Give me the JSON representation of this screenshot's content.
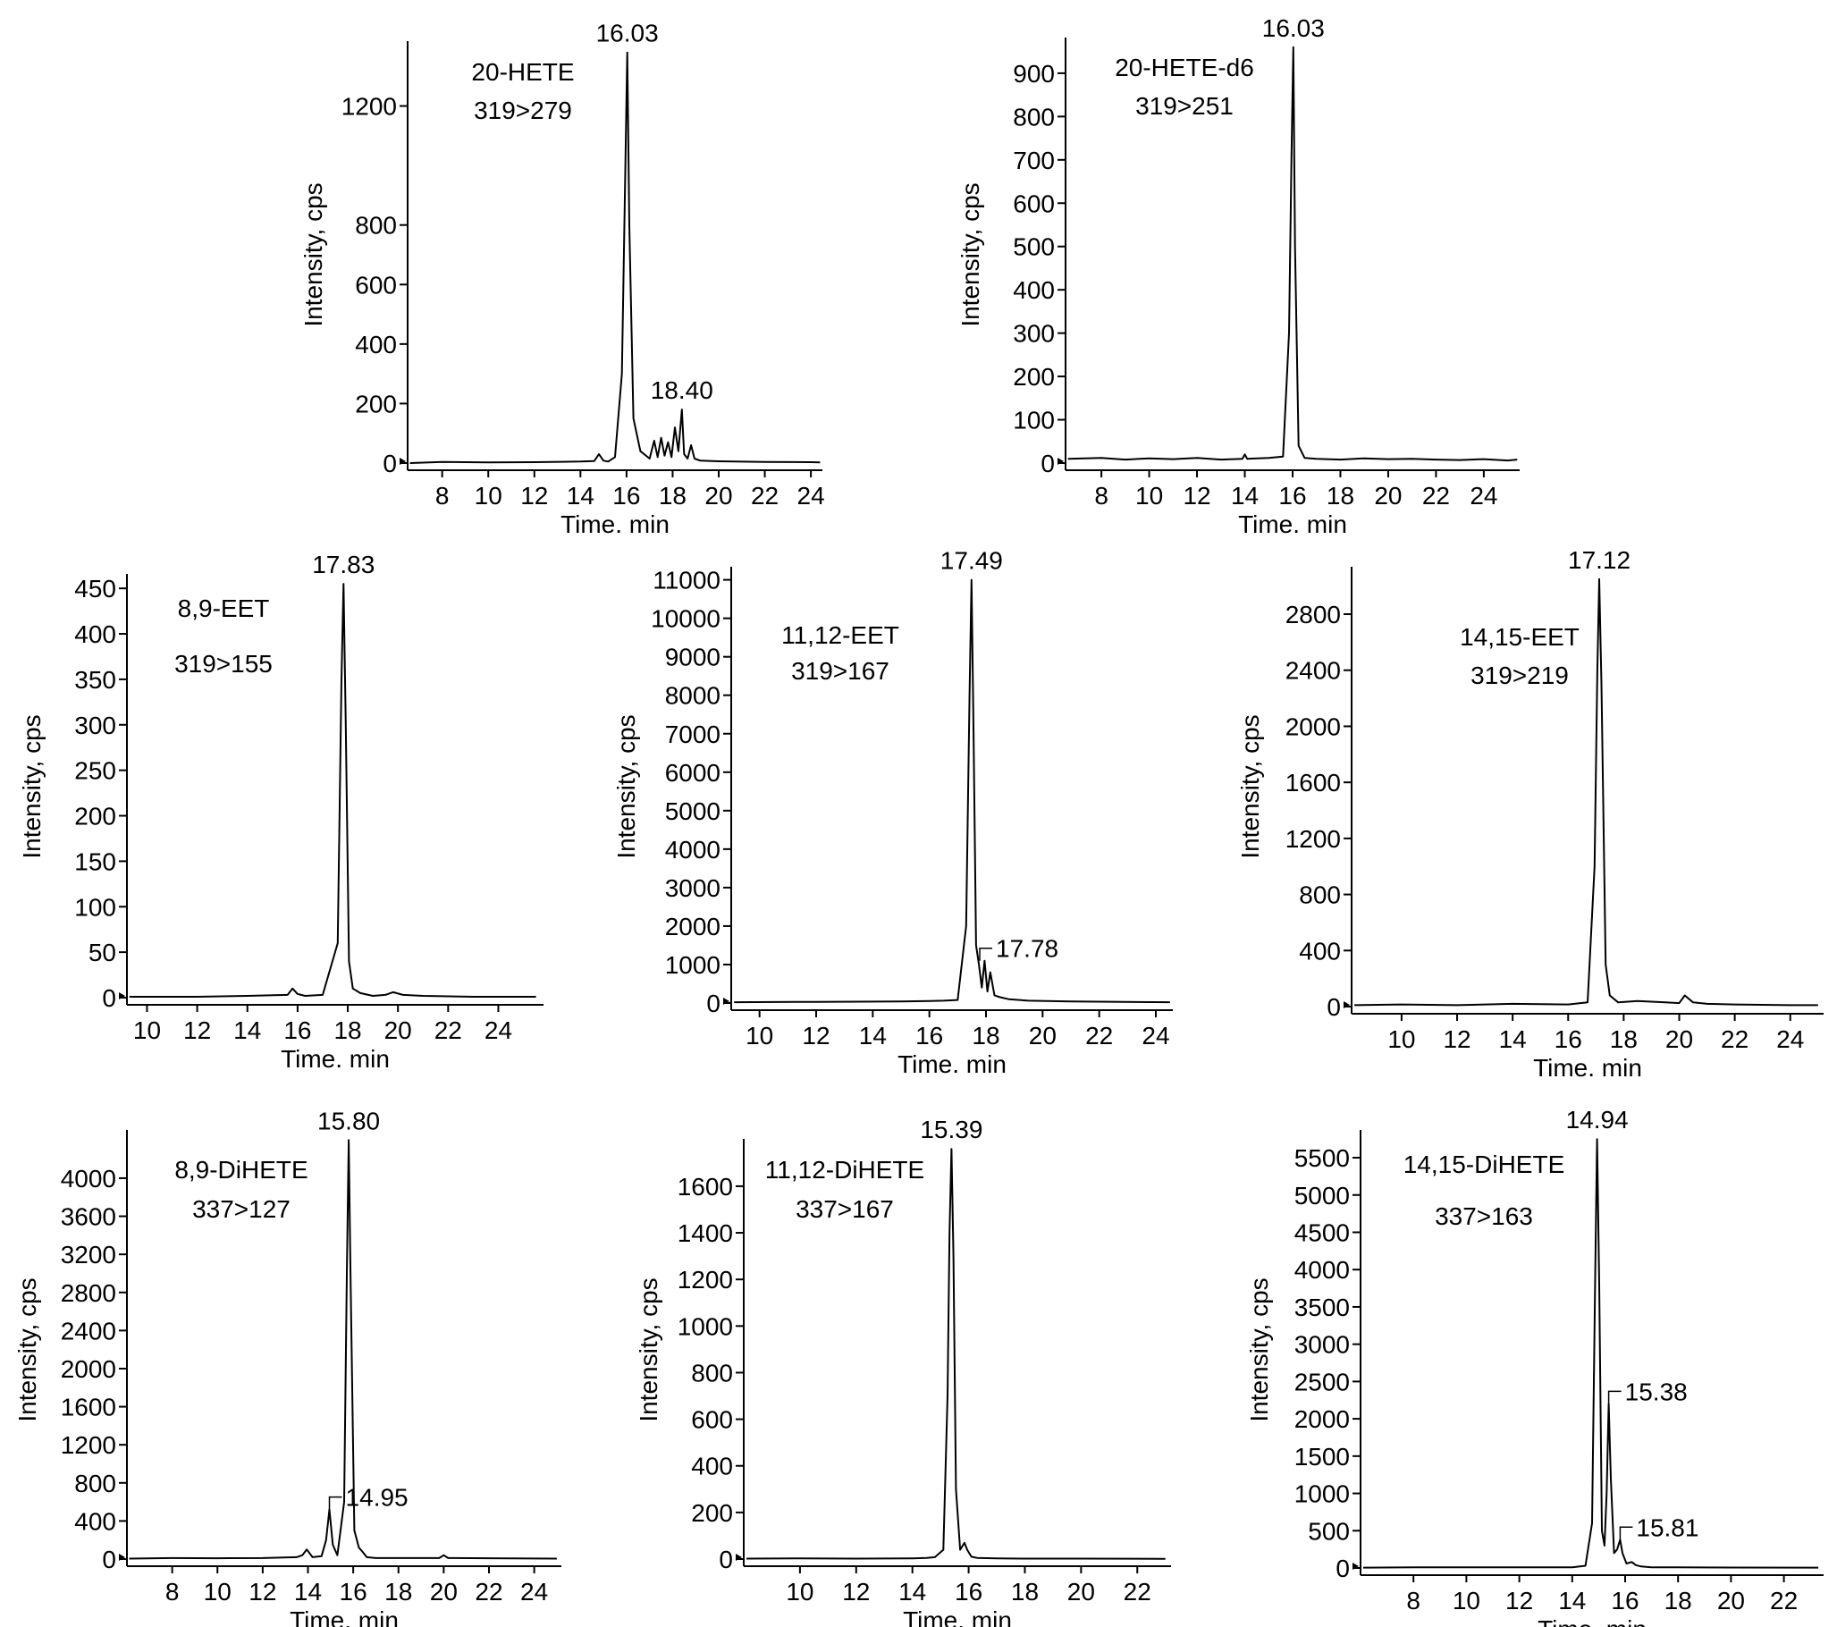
{
  "chart_data": [
    {
      "type": "line",
      "xlabel": "Time. min",
      "ylabel": "Intensity, cps",
      "xlim": [
        6.5,
        24.5
      ],
      "ylim": [
        0,
        1400
      ],
      "xticks": [
        8,
        10,
        12,
        14,
        16,
        18,
        20,
        22,
        24
      ],
      "yticks": [
        0,
        200,
        400,
        600,
        800,
        1200
      ],
      "annotation_lines": [
        "20-HETE",
        "319>279"
      ],
      "series": [
        {
          "x": [
            6.6,
            8.0,
            10.0,
            12.0,
            14.0,
            14.6,
            14.8,
            15.0,
            15.2,
            15.5,
            15.8,
            15.95,
            16.03,
            16.12,
            16.3,
            16.6,
            17.0,
            17.2,
            17.35,
            17.5,
            17.65,
            17.8,
            17.95,
            18.1,
            18.25,
            18.4,
            18.5,
            18.65,
            18.8,
            18.95,
            19.2,
            20.0,
            22.0,
            24.0,
            24.4
          ],
          "y": [
            0,
            4,
            2,
            3,
            5,
            7,
            30,
            8,
            5,
            20,
            300,
            1000,
            1380,
            800,
            150,
            40,
            15,
            75,
            20,
            85,
            25,
            70,
            20,
            120,
            40,
            180,
            30,
            15,
            60,
            15,
            8,
            6,
            4,
            3,
            2
          ]
        }
      ],
      "peak_labels": [
        {
          "text": "16.03",
          "x": 16.03,
          "y": 1380,
          "leader": false
        },
        {
          "text": "18.40",
          "x": 18.4,
          "y": 180,
          "leader": false
        }
      ]
    },
    {
      "type": "line",
      "xlabel": "Time. min",
      "ylabel": "Intensity, cps",
      "xlim": [
        6.5,
        25.5
      ],
      "ylim": [
        0,
        970
      ],
      "xticks": [
        8,
        10,
        12,
        14,
        16,
        18,
        20,
        22,
        24
      ],
      "yticks": [
        0,
        100,
        200,
        300,
        400,
        500,
        600,
        700,
        800,
        900
      ],
      "annotation_lines": [
        "20-HETE-d6",
        "319>251"
      ],
      "series": [
        {
          "x": [
            6.6,
            8.0,
            9.0,
            10.0,
            11.0,
            12.0,
            13.0,
            13.9,
            14.0,
            14.1,
            15.0,
            15.6,
            15.85,
            15.95,
            16.03,
            16.1,
            16.25,
            16.5,
            17.0,
            18.0,
            19.0,
            20.0,
            21.0,
            22.0,
            23.0,
            24.0,
            25.0,
            25.4
          ],
          "y": [
            10,
            12,
            8,
            11,
            9,
            12,
            8,
            10,
            20,
            10,
            12,
            15,
            300,
            700,
            960,
            500,
            40,
            12,
            10,
            8,
            11,
            9,
            10,
            8,
            7,
            9,
            6,
            8
          ]
        }
      ],
      "peak_labels": [
        {
          "text": "16.03",
          "x": 16.03,
          "y": 960,
          "leader": false
        }
      ]
    },
    {
      "type": "line",
      "xlabel": "Time. min",
      "ylabel": "Intensity, cps",
      "xlim": [
        9.2,
        25.8
      ],
      "ylim": [
        0,
        460
      ],
      "xticks": [
        10,
        12,
        14,
        16,
        18,
        20,
        22,
        24
      ],
      "yticks": [
        0,
        50,
        100,
        150,
        200,
        250,
        300,
        350,
        400,
        450
      ],
      "annotation_lines": [
        "8,9-EET",
        "319>155"
      ],
      "series": [
        {
          "x": [
            9.3,
            12.0,
            14.0,
            15.6,
            15.8,
            16.0,
            16.3,
            17.0,
            17.6,
            17.75,
            17.83,
            17.92,
            18.05,
            18.2,
            18.5,
            19.0,
            19.5,
            19.8,
            20.2,
            21.0,
            23.0,
            25.5
          ],
          "y": [
            1,
            1,
            2,
            3,
            10,
            4,
            2,
            3,
            60,
            350,
            455,
            300,
            40,
            10,
            5,
            2,
            3,
            6,
            3,
            2,
            1,
            1
          ]
        }
      ],
      "peak_labels": [
        {
          "text": "17.83",
          "x": 17.83,
          "y": 455,
          "leader": false
        }
      ]
    },
    {
      "type": "line",
      "xlabel": "Time. min",
      "ylabel": "Intensity, cps",
      "xlim": [
        9.0,
        24.6
      ],
      "ylim": [
        0,
        11200
      ],
      "xticks": [
        10,
        12,
        14,
        16,
        18,
        20,
        22,
        24
      ],
      "yticks": [
        0,
        1000,
        2000,
        3000,
        4000,
        5000,
        6000,
        7000,
        8000,
        9000,
        10000,
        11000
      ],
      "annotation_lines": [
        "11,12-EET",
        "319>167"
      ],
      "series": [
        {
          "x": [
            9.1,
            12.0,
            15.0,
            16.0,
            16.5,
            17.0,
            17.3,
            17.42,
            17.49,
            17.56,
            17.65,
            17.75,
            17.85,
            17.95,
            18.05,
            18.15,
            18.3,
            18.5,
            18.8,
            19.5,
            21.0,
            24.5
          ],
          "y": [
            20,
            30,
            40,
            50,
            60,
            80,
            2000,
            8000,
            11000,
            7000,
            1500,
            1000,
            400,
            1100,
            300,
            800,
            200,
            150,
            100,
            60,
            40,
            20
          ]
        }
      ],
      "peak_labels": [
        {
          "text": "17.49",
          "x": 17.49,
          "y": 11000,
          "leader": false
        },
        {
          "text": "17.78",
          "x": 17.78,
          "y": 1100,
          "leader": true
        }
      ]
    },
    {
      "type": "line",
      "xlabel": "Time. min",
      "ylabel": "Intensity, cps",
      "xlim": [
        8.2,
        25.2
      ],
      "ylim": [
        0,
        3100
      ],
      "xticks": [
        10,
        12,
        14,
        16,
        18,
        20,
        22,
        24
      ],
      "yticks": [
        0,
        400,
        800,
        1200,
        1600,
        2000,
        2400,
        2800
      ],
      "annotation_lines": [
        "14,15-EET",
        "319>219"
      ],
      "series": [
        {
          "x": [
            8.3,
            10.0,
            12.0,
            14.0,
            16.0,
            16.7,
            16.95,
            17.05,
            17.12,
            17.2,
            17.35,
            17.5,
            17.8,
            18.5,
            19.5,
            20.0,
            20.2,
            20.5,
            21.0,
            22.0,
            24.0,
            25.0
          ],
          "y": [
            10,
            15,
            10,
            20,
            15,
            30,
            1000,
            2400,
            3050,
            2300,
            300,
            80,
            30,
            40,
            30,
            25,
            80,
            30,
            20,
            15,
            10,
            10
          ]
        }
      ],
      "peak_labels": [
        {
          "text": "17.12",
          "x": 17.12,
          "y": 3050,
          "leader": false
        }
      ]
    },
    {
      "type": "line",
      "xlabel": "Time. min",
      "ylabel": "Intensity, cps",
      "xlim": [
        6.0,
        25.2
      ],
      "ylim": [
        0,
        4450
      ],
      "xticks": [
        8,
        10,
        12,
        14,
        16,
        18,
        20,
        22,
        24
      ],
      "yticks": [
        0,
        400,
        800,
        1200,
        1600,
        2000,
        2400,
        2800,
        3200,
        3600,
        4000
      ],
      "annotation_lines": [
        "8,9-DiHETE",
        "337>127"
      ],
      "series": [
        {
          "x": [
            6.1,
            8.0,
            10.0,
            12.0,
            13.5,
            13.75,
            13.95,
            14.2,
            14.6,
            14.8,
            14.95,
            15.1,
            15.3,
            15.6,
            15.72,
            15.8,
            15.88,
            16.05,
            16.25,
            16.4,
            16.6,
            17.0,
            18.0,
            19.8,
            20.0,
            20.2,
            22.0,
            25.0
          ],
          "y": [
            5,
            10,
            8,
            10,
            20,
            40,
            100,
            20,
            30,
            200,
            520,
            150,
            40,
            600,
            3000,
            4400,
            3000,
            300,
            120,
            80,
            20,
            10,
            10,
            10,
            40,
            10,
            8,
            5
          ]
        }
      ],
      "peak_labels": [
        {
          "text": "15.80",
          "x": 15.8,
          "y": 4400,
          "leader": false
        },
        {
          "text": "14.95",
          "x": 14.95,
          "y": 520,
          "leader": true
        }
      ]
    },
    {
      "type": "line",
      "xlabel": "Time. min",
      "ylabel": "Intensity, cps",
      "xlim": [
        8.0,
        23.2
      ],
      "ylim": [
        0,
        1780
      ],
      "xticks": [
        10,
        12,
        14,
        16,
        18,
        20,
        22
      ],
      "yticks": [
        0,
        200,
        400,
        600,
        800,
        1000,
        1200,
        1400,
        1600
      ],
      "annotation_lines": [
        "11,12-DiHETE",
        "337>167"
      ],
      "series": [
        {
          "x": [
            8.1,
            10.0,
            12.0,
            14.0,
            14.5,
            14.8,
            15.1,
            15.25,
            15.32,
            15.39,
            15.46,
            15.55,
            15.7,
            15.85,
            15.95,
            16.1,
            16.3,
            17.0,
            18.0,
            20.0,
            23.0
          ],
          "y": [
            2,
            3,
            2,
            3,
            5,
            8,
            40,
            700,
            1400,
            1760,
            1300,
            300,
            40,
            70,
            40,
            10,
            5,
            3,
            2,
            2,
            1
          ]
        }
      ],
      "peak_labels": [
        {
          "text": "15.39",
          "x": 15.39,
          "y": 1760,
          "leader": false
        }
      ]
    },
    {
      "type": "line",
      "xlabel": "Time. min",
      "ylabel": "Intensity, cps",
      "xlim": [
        6.0,
        23.5
      ],
      "ylim": [
        0,
        5800
      ],
      "xticks": [
        8,
        10,
        12,
        14,
        16,
        18,
        20,
        22
      ],
      "yticks": [
        0,
        500,
        1000,
        1500,
        2000,
        2500,
        3000,
        3500,
        4000,
        4500,
        5000,
        5500
      ],
      "annotation_lines": [
        "14,15-DiHETE",
        "337>163"
      ],
      "series": [
        {
          "x": [
            6.1,
            8.0,
            10.0,
            12.0,
            14.0,
            14.5,
            14.75,
            14.87,
            14.94,
            15.02,
            15.12,
            15.22,
            15.3,
            15.38,
            15.46,
            15.58,
            15.7,
            15.81,
            15.9,
            16.05,
            16.25,
            16.4,
            16.6,
            17.0,
            18.0,
            20.0,
            23.3
          ],
          "y": [
            5,
            8,
            10,
            8,
            10,
            30,
            600,
            4000,
            5750,
            3800,
            500,
            300,
            1000,
            2200,
            1200,
            200,
            250,
            380,
            200,
            60,
            80,
            40,
            20,
            10,
            8,
            6,
            5
          ]
        }
      ],
      "peak_labels": [
        {
          "text": "14.94",
          "x": 14.94,
          "y": 5750,
          "leader": false
        },
        {
          "text": "15.38",
          "x": 15.38,
          "y": 2200,
          "leader": true
        },
        {
          "text": "15.81",
          "x": 15.81,
          "y": 380,
          "leader": true
        }
      ]
    }
  ]
}
